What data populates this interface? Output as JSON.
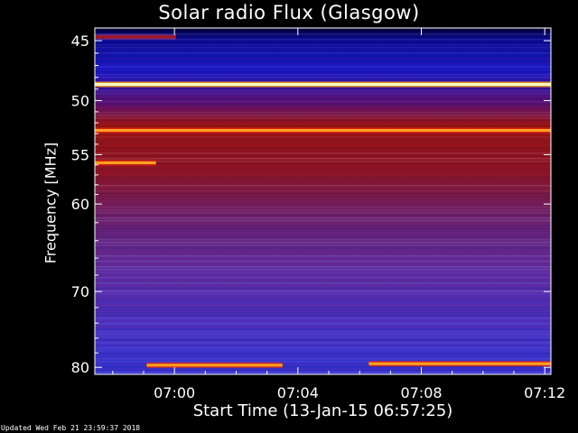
{
  "chart_data": {
    "type": "heatmap",
    "title": "Solar radio Flux (Glasgow)",
    "xlabel": "Start Time (13-Jan-15 06:57:25)",
    "ylabel": "Frequency [MHz]",
    "x_range_minutes_after_0700": [
      -2.58,
      12.2
    ],
    "x_ticks": [
      {
        "label": "07:00",
        "value_min_after_0700": 0
      },
      {
        "label": "07:04",
        "value_min_after_0700": 4
      },
      {
        "label": "07:08",
        "value_min_after_0700": 8
      },
      {
        "label": "07:12",
        "value_min_after_0700": 12
      }
    ],
    "ylim_mhz": [
      44,
      81
    ],
    "y_inverted": true,
    "y_ticks": [
      {
        "label": "45",
        "value": 45
      },
      {
        "label": "50",
        "value": 50
      },
      {
        "label": "55",
        "value": 55
      },
      {
        "label": "60",
        "value": 60
      },
      {
        "label": "70",
        "value": 70
      },
      {
        "label": "80",
        "value": 80
      }
    ],
    "colormap": [
      "#000040",
      "#1a18b0",
      "#4b2ad0",
      "#7a2a90",
      "#a01818",
      "#d82810",
      "#ffa020",
      "#ffffc0"
    ],
    "bands": [
      {
        "freq": 44.7,
        "level": 0.5,
        "x_start": -2.58,
        "x_end": 0.05
      },
      {
        "freq": 48.6,
        "level": 1.0,
        "x_start": -2.58,
        "x_end": 12.2
      },
      {
        "freq": 52.7,
        "level": 0.92,
        "x_start": -2.58,
        "x_end": 12.2
      },
      {
        "freq": 55.8,
        "level": 0.88,
        "x_start": -2.58,
        "x_end": -0.6
      },
      {
        "freq": 79.7,
        "level": 0.86,
        "x_start": -0.9,
        "x_end": 3.5
      },
      {
        "freq": 79.5,
        "level": 0.86,
        "x_start": 6.3,
        "x_end": 12.2
      }
    ]
  },
  "footer": "Updated Wed Feb 21 23:59:37 2018"
}
